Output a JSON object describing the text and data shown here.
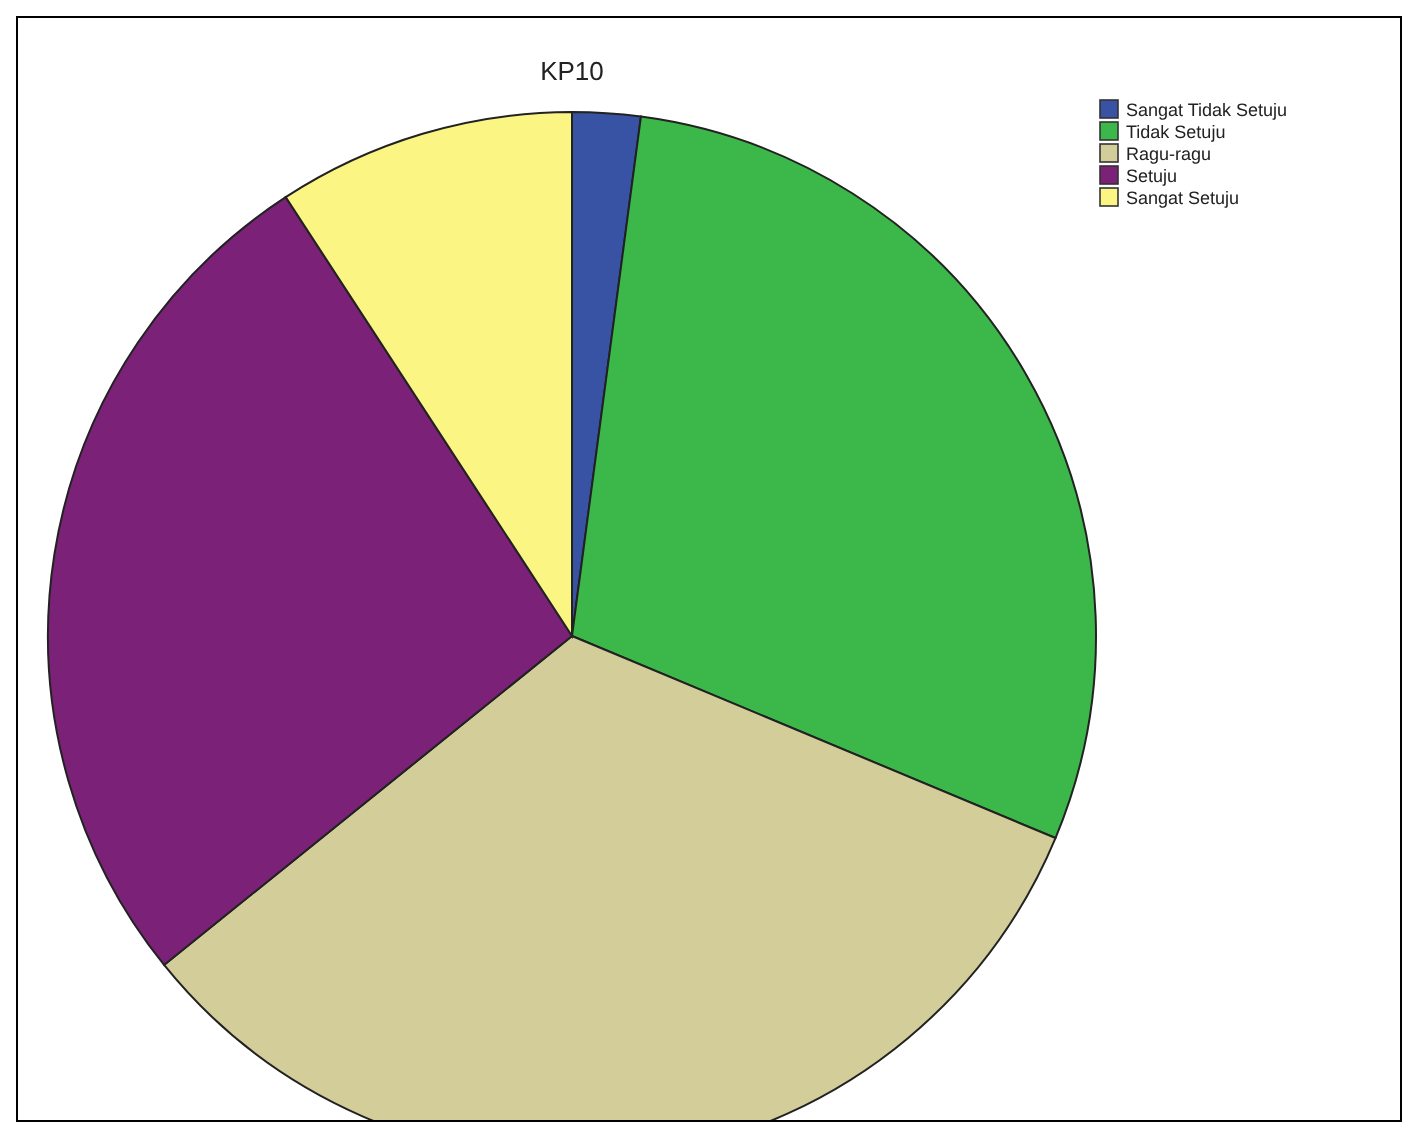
{
  "chart_data": {
    "type": "pie",
    "title": "KP10",
    "categories": [
      "Sangat Tidak Setuju",
      "Tidak Setuju",
      "Ragu-ragu",
      "Setuju",
      "Sangat Setuju"
    ],
    "values": [
      2.1,
      29.2,
      32.9,
      26.6,
      9.2
    ],
    "colors": [
      "#3953a4",
      "#3cb84a",
      "#d3ce99",
      "#7b2278",
      "#fbf583"
    ],
    "legend": "top right"
  }
}
